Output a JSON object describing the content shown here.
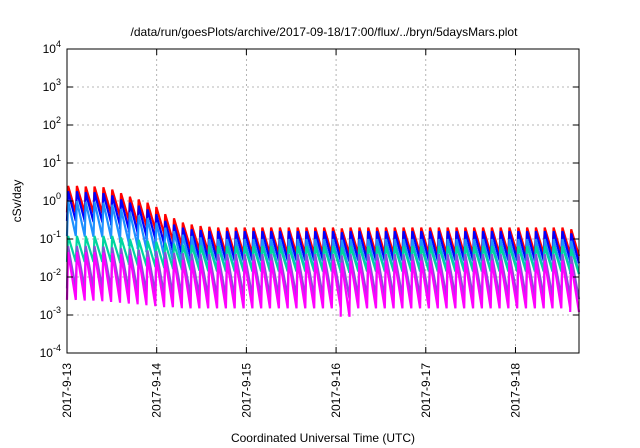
{
  "chart_data": {
    "type": "line",
    "title": "/data/run/goesPlots/archive/2017-09-18/17:00/flux/../bryn/5daysMars.plot",
    "xlabel": "Coordinated Universal Time (UTC)",
    "ylabel": "cSv/day",
    "y_scale": "log",
    "ylim": [
      0.0001,
      10000
    ],
    "xlim": [
      "2017-09-13 00:00",
      "2017-09-18 17:00"
    ],
    "grid": true,
    "y_ticks": [
      {
        "base": "10",
        "exp": "4"
      },
      {
        "base": "10",
        "exp": "3"
      },
      {
        "base": "10",
        "exp": "2"
      },
      {
        "base": "10",
        "exp": "1"
      },
      {
        "base": "10",
        "exp": "0"
      },
      {
        "base": "10",
        "exp": "-1"
      },
      {
        "base": "10",
        "exp": "-2"
      },
      {
        "base": "10",
        "exp": "-3"
      },
      {
        "base": "10",
        "exp": "-4"
      }
    ],
    "x_ticks": [
      "2017-9-13",
      "2017-9-14",
      "2017-9-15",
      "2017-9-16",
      "2017-9-17",
      "2017-9-18"
    ],
    "series": [
      {
        "color": "#ff0000",
        "peaks": [
          2.5,
          2.5,
          2.4,
          2.4,
          2.3,
          2.0,
          1.6,
          1.3,
          1.1,
          0.9,
          0.7,
          0.45,
          0.35,
          0.27,
          0.24,
          0.22,
          0.21,
          0.2,
          0.2,
          0.2,
          0.2,
          0.2,
          0.2,
          0.2,
          0.2,
          0.2,
          0.2,
          0.2,
          0.2,
          0.2,
          0.2,
          0.19,
          0.2,
          0.2,
          0.2,
          0.2,
          0.2,
          0.2,
          0.2,
          0.2,
          0.2,
          0.2,
          0.2,
          0.2,
          0.2,
          0.2,
          0.2,
          0.2,
          0.2,
          0.2,
          0.2,
          0.2,
          0.2,
          0.2,
          0.2,
          0.2,
          0.2,
          0.18
        ],
        "troughs": [
          0.5,
          0.5,
          0.48,
          0.48,
          0.46,
          0.4,
          0.32,
          0.26,
          0.22,
          0.18,
          0.14,
          0.09,
          0.07,
          0.055,
          0.05,
          0.045,
          0.043,
          0.041,
          0.04,
          0.04,
          0.04,
          0.04,
          0.04,
          0.04,
          0.04,
          0.04,
          0.04,
          0.04,
          0.04,
          0.04,
          0.04,
          0.039,
          0.04,
          0.04,
          0.04,
          0.04,
          0.04,
          0.04,
          0.04,
          0.04,
          0.04,
          0.04,
          0.04,
          0.04,
          0.04,
          0.04,
          0.04,
          0.04,
          0.04,
          0.04,
          0.04,
          0.04,
          0.04,
          0.04,
          0.04,
          0.04,
          0.04,
          0.036
        ]
      },
      {
        "color": "#0000ff",
        "peaks": [
          1.8,
          1.8,
          1.7,
          1.7,
          1.6,
          1.4,
          1.1,
          0.9,
          0.75,
          0.6,
          0.45,
          0.3,
          0.24,
          0.2,
          0.18,
          0.17,
          0.16,
          0.16,
          0.16,
          0.16,
          0.16,
          0.16,
          0.16,
          0.16,
          0.16,
          0.16,
          0.16,
          0.16,
          0.16,
          0.16,
          0.16,
          0.15,
          0.16,
          0.16,
          0.16,
          0.16,
          0.16,
          0.16,
          0.16,
          0.16,
          0.16,
          0.16,
          0.16,
          0.16,
          0.16,
          0.16,
          0.16,
          0.16,
          0.16,
          0.16,
          0.16,
          0.16,
          0.16,
          0.16,
          0.16,
          0.16,
          0.16,
          0.14
        ],
        "troughs": [
          0.3,
          0.3,
          0.28,
          0.28,
          0.27,
          0.23,
          0.18,
          0.15,
          0.12,
          0.1,
          0.075,
          0.05,
          0.04,
          0.033,
          0.03,
          0.028,
          0.027,
          0.027,
          0.027,
          0.027,
          0.027,
          0.027,
          0.027,
          0.027,
          0.027,
          0.027,
          0.027,
          0.027,
          0.027,
          0.027,
          0.027,
          0.025,
          0.027,
          0.027,
          0.027,
          0.027,
          0.027,
          0.027,
          0.027,
          0.027,
          0.027,
          0.027,
          0.027,
          0.027,
          0.027,
          0.027,
          0.027,
          0.027,
          0.027,
          0.027,
          0.027,
          0.027,
          0.027,
          0.027,
          0.027,
          0.027,
          0.027,
          0.023
        ]
      },
      {
        "color": "#1e90ff",
        "peaks": [
          1.0,
          1.0,
          0.95,
          0.95,
          0.9,
          0.8,
          0.62,
          0.5,
          0.42,
          0.35,
          0.27,
          0.2,
          0.16,
          0.13,
          0.12,
          0.11,
          0.1,
          0.1,
          0.1,
          0.1,
          0.1,
          0.1,
          0.1,
          0.1,
          0.1,
          0.1,
          0.1,
          0.1,
          0.1,
          0.1,
          0.1,
          0.095,
          0.1,
          0.1,
          0.1,
          0.1,
          0.1,
          0.1,
          0.1,
          0.1,
          0.1,
          0.1,
          0.1,
          0.1,
          0.1,
          0.1,
          0.1,
          0.1,
          0.1,
          0.1,
          0.1,
          0.1,
          0.1,
          0.1,
          0.1,
          0.1,
          0.1,
          0.09
        ],
        "troughs": [
          0.12,
          0.12,
          0.115,
          0.115,
          0.11,
          0.1,
          0.08,
          0.065,
          0.055,
          0.045,
          0.036,
          0.027,
          0.022,
          0.018,
          0.016,
          0.015,
          0.014,
          0.014,
          0.014,
          0.014,
          0.014,
          0.014,
          0.014,
          0.014,
          0.014,
          0.014,
          0.014,
          0.014,
          0.014,
          0.014,
          0.014,
          0.013,
          0.014,
          0.014,
          0.014,
          0.014,
          0.014,
          0.014,
          0.014,
          0.014,
          0.014,
          0.014,
          0.014,
          0.014,
          0.014,
          0.014,
          0.014,
          0.014,
          0.014,
          0.014,
          0.014,
          0.014,
          0.014,
          0.014,
          0.014,
          0.014,
          0.014,
          0.012
        ]
      },
      {
        "color": "#00d5a0",
        "peaks": [
          0.12,
          0.12,
          0.12,
          0.12,
          0.12,
          0.12,
          0.11,
          0.1,
          0.095,
          0.09,
          0.085,
          0.08,
          0.075,
          0.07,
          0.07,
          0.068,
          0.066,
          0.065,
          0.065,
          0.065,
          0.065,
          0.065,
          0.065,
          0.065,
          0.065,
          0.065,
          0.065,
          0.065,
          0.065,
          0.065,
          0.065,
          0.06,
          0.065,
          0.065,
          0.065,
          0.065,
          0.065,
          0.065,
          0.065,
          0.065,
          0.065,
          0.065,
          0.065,
          0.065,
          0.065,
          0.065,
          0.065,
          0.065,
          0.065,
          0.065,
          0.065,
          0.065,
          0.065,
          0.065,
          0.065,
          0.065,
          0.065,
          0.055
        ],
        "troughs": [
          0.025,
          0.025,
          0.025,
          0.025,
          0.025,
          0.025,
          0.023,
          0.021,
          0.02,
          0.019,
          0.018,
          0.017,
          0.016,
          0.015,
          0.015,
          0.0145,
          0.014,
          0.014,
          0.014,
          0.014,
          0.014,
          0.014,
          0.014,
          0.014,
          0.014,
          0.014,
          0.014,
          0.014,
          0.014,
          0.014,
          0.014,
          0.013,
          0.014,
          0.014,
          0.014,
          0.014,
          0.014,
          0.014,
          0.014,
          0.014,
          0.014,
          0.014,
          0.014,
          0.014,
          0.014,
          0.014,
          0.014,
          0.014,
          0.014,
          0.014,
          0.014,
          0.014,
          0.014,
          0.014,
          0.014,
          0.014,
          0.014,
          0.012
        ]
      },
      {
        "color": "#8a4fd8",
        "peaks": [
          0.065,
          0.065,
          0.065,
          0.065,
          0.063,
          0.06,
          0.057,
          0.055,
          0.052,
          0.05,
          0.048,
          0.045,
          0.043,
          0.042,
          0.041,
          0.04,
          0.04,
          0.04,
          0.04,
          0.04,
          0.04,
          0.04,
          0.04,
          0.04,
          0.04,
          0.04,
          0.04,
          0.04,
          0.04,
          0.04,
          0.04,
          0.037,
          0.04,
          0.04,
          0.04,
          0.04,
          0.04,
          0.04,
          0.04,
          0.04,
          0.04,
          0.04,
          0.04,
          0.04,
          0.04,
          0.04,
          0.04,
          0.04,
          0.04,
          0.04,
          0.04,
          0.04,
          0.04,
          0.04,
          0.04,
          0.04,
          0.04,
          0.035
        ],
        "troughs": [
          0.005,
          0.005,
          0.005,
          0.005,
          0.0048,
          0.0046,
          0.0044,
          0.0042,
          0.004,
          0.0038,
          0.0036,
          0.0034,
          0.0033,
          0.0032,
          0.0031,
          0.003,
          0.003,
          0.003,
          0.003,
          0.003,
          0.003,
          0.003,
          0.003,
          0.003,
          0.003,
          0.003,
          0.003,
          0.003,
          0.003,
          0.003,
          0.003,
          0.0027,
          0.003,
          0.003,
          0.003,
          0.003,
          0.003,
          0.003,
          0.003,
          0.003,
          0.003,
          0.003,
          0.003,
          0.003,
          0.003,
          0.003,
          0.003,
          0.003,
          0.003,
          0.003,
          0.003,
          0.003,
          0.003,
          0.003,
          0.003,
          0.003,
          0.003,
          0.0026
        ]
      },
      {
        "color": "#ff00ff",
        "peaks": [
          0.045,
          0.045,
          0.045,
          0.045,
          0.044,
          0.042,
          0.04,
          0.038,
          0.036,
          0.034,
          0.032,
          0.03,
          0.029,
          0.028,
          0.027,
          0.027,
          0.027,
          0.027,
          0.027,
          0.027,
          0.027,
          0.027,
          0.027,
          0.027,
          0.027,
          0.027,
          0.027,
          0.027,
          0.027,
          0.027,
          0.027,
          0.024,
          0.027,
          0.027,
          0.027,
          0.027,
          0.027,
          0.027,
          0.027,
          0.027,
          0.027,
          0.027,
          0.027,
          0.027,
          0.027,
          0.027,
          0.027,
          0.027,
          0.027,
          0.027,
          0.027,
          0.027,
          0.027,
          0.027,
          0.027,
          0.027,
          0.027,
          0.022
        ],
        "troughs": [
          0.0025,
          0.0025,
          0.0024,
          0.0024,
          0.0023,
          0.0022,
          0.0021,
          0.002,
          0.0019,
          0.0018,
          0.0017,
          0.0016,
          0.0016,
          0.0015,
          0.0015,
          0.0015,
          0.0015,
          0.0015,
          0.0015,
          0.0015,
          0.0015,
          0.0015,
          0.0015,
          0.0015,
          0.0015,
          0.0015,
          0.0015,
          0.0015,
          0.0015,
          0.0015,
          0.0015,
          0.0009,
          0.0015,
          0.0015,
          0.0015,
          0.0015,
          0.0015,
          0.0015,
          0.0015,
          0.0015,
          0.0015,
          0.0015,
          0.0015,
          0.0015,
          0.0015,
          0.0015,
          0.0015,
          0.0015,
          0.0015,
          0.0015,
          0.0015,
          0.0015,
          0.0015,
          0.0015,
          0.0015,
          0.0015,
          0.0015,
          0.0012
        ]
      }
    ]
  }
}
